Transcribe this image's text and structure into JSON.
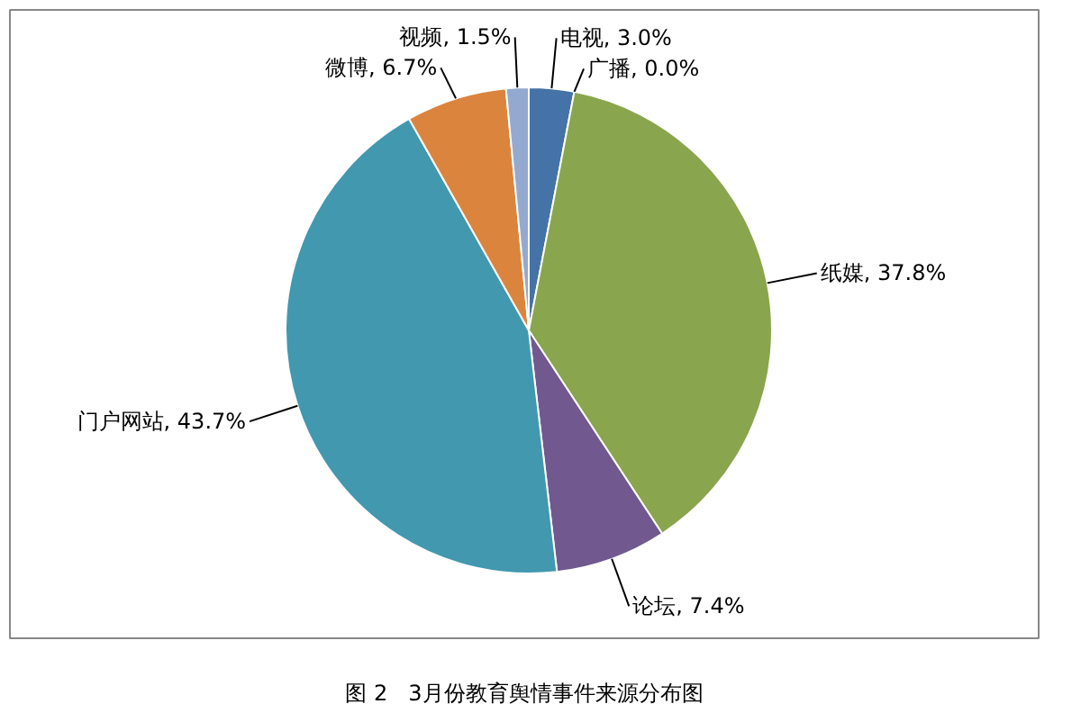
{
  "chart_data": {
    "type": "pie",
    "categories": [
      "电视",
      "广播",
      "纸媒",
      "论坛",
      "门户网站",
      "微博",
      "视频"
    ],
    "values": [
      3.0,
      0.0,
      37.8,
      7.4,
      43.7,
      6.7,
      1.5
    ],
    "value_labels": [
      "3.0%",
      "0.0%",
      "37.8%",
      "7.4%",
      "43.7%",
      "6.7%",
      "1.5%"
    ],
    "colors": [
      "#4572a7",
      "#aa4643",
      "#89a54e",
      "#71588f",
      "#4198af",
      "#db843d",
      "#93a9cf"
    ],
    "annotations": [
      "图 2   3月份教育舆情事件来源分布图"
    ]
  }
}
